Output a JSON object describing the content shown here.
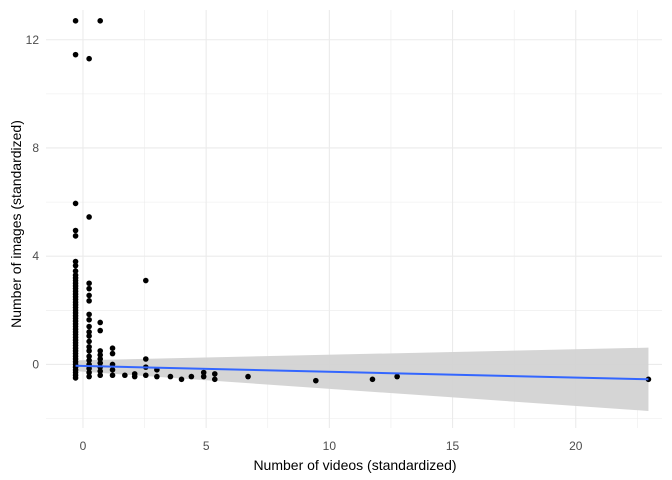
{
  "chart_data": {
    "type": "scatter",
    "title": "",
    "xlabel": "Number of videos (standardized)",
    "ylabel": "Number of images (standardized)",
    "xlim": [
      -1.5,
      23.5
    ],
    "ylim": [
      -2.35,
      13.1
    ],
    "x_ticks": [
      0,
      5,
      10,
      15,
      20
    ],
    "x_tick_labels": [
      "0",
      "5",
      "10",
      "15",
      "20"
    ],
    "y_ticks": [
      0,
      4,
      8,
      12
    ],
    "y_tick_labels": [
      "0",
      "4",
      "8",
      "12"
    ],
    "grid": true,
    "legend": "none",
    "points": [
      {
        "x": -0.3,
        "y": 12.7
      },
      {
        "x": 0.7,
        "y": 12.7
      },
      {
        "x": -0.3,
        "y": 11.45
      },
      {
        "x": 0.25,
        "y": 11.3
      },
      {
        "x": -0.3,
        "y": 5.95
      },
      {
        "x": 0.25,
        "y": 5.45
      },
      {
        "x": -0.3,
        "y": 4.95
      },
      {
        "x": -0.3,
        "y": 4.75
      },
      {
        "x": -0.3,
        "y": 3.8
      },
      {
        "x": -0.3,
        "y": 3.65
      },
      {
        "x": -0.3,
        "y": 3.45
      },
      {
        "x": -0.3,
        "y": 3.3
      },
      {
        "x": -0.3,
        "y": 3.2
      },
      {
        "x": -0.3,
        "y": 3.1
      },
      {
        "x": -0.3,
        "y": 3.0
      },
      {
        "x": -0.3,
        "y": 2.9
      },
      {
        "x": -0.3,
        "y": 2.8
      },
      {
        "x": -0.3,
        "y": 2.7
      },
      {
        "x": -0.3,
        "y": 2.6
      },
      {
        "x": -0.3,
        "y": 2.5
      },
      {
        "x": -0.3,
        "y": 2.4
      },
      {
        "x": -0.3,
        "y": 2.3
      },
      {
        "x": -0.3,
        "y": 2.2
      },
      {
        "x": -0.3,
        "y": 2.1
      },
      {
        "x": -0.3,
        "y": 2.0
      },
      {
        "x": -0.3,
        "y": 1.9
      },
      {
        "x": -0.3,
        "y": 1.8
      },
      {
        "x": -0.3,
        "y": 1.7
      },
      {
        "x": -0.3,
        "y": 1.6
      },
      {
        "x": -0.3,
        "y": 1.5
      },
      {
        "x": -0.3,
        "y": 1.4
      },
      {
        "x": -0.3,
        "y": 1.3
      },
      {
        "x": -0.3,
        "y": 1.2
      },
      {
        "x": -0.3,
        "y": 1.1
      },
      {
        "x": -0.3,
        "y": 1.0
      },
      {
        "x": -0.3,
        "y": 0.9
      },
      {
        "x": -0.3,
        "y": 0.8
      },
      {
        "x": -0.3,
        "y": 0.7
      },
      {
        "x": -0.3,
        "y": 0.6
      },
      {
        "x": -0.3,
        "y": 0.5
      },
      {
        "x": -0.3,
        "y": 0.4
      },
      {
        "x": -0.3,
        "y": 0.3
      },
      {
        "x": -0.3,
        "y": 0.2
      },
      {
        "x": -0.3,
        "y": 0.1
      },
      {
        "x": -0.3,
        "y": 0.0
      },
      {
        "x": -0.3,
        "y": -0.1
      },
      {
        "x": -0.3,
        "y": -0.2
      },
      {
        "x": -0.3,
        "y": -0.3
      },
      {
        "x": -0.3,
        "y": -0.4
      },
      {
        "x": -0.3,
        "y": -0.5
      },
      {
        "x": 0.25,
        "y": 3.0
      },
      {
        "x": 0.25,
        "y": 2.8
      },
      {
        "x": 0.25,
        "y": 2.55
      },
      {
        "x": 0.25,
        "y": 2.35
      },
      {
        "x": 0.25,
        "y": 1.85
      },
      {
        "x": 0.25,
        "y": 1.65
      },
      {
        "x": 0.25,
        "y": 1.4
      },
      {
        "x": 0.25,
        "y": 1.2
      },
      {
        "x": 0.25,
        "y": 1.05
      },
      {
        "x": 0.25,
        "y": 0.85
      },
      {
        "x": 0.25,
        "y": 0.65
      },
      {
        "x": 0.25,
        "y": 0.5
      },
      {
        "x": 0.25,
        "y": 0.3
      },
      {
        "x": 0.25,
        "y": 0.15
      },
      {
        "x": 0.25,
        "y": 0.0
      },
      {
        "x": 0.25,
        "y": -0.15
      },
      {
        "x": 0.25,
        "y": -0.3
      },
      {
        "x": 0.25,
        "y": -0.45
      },
      {
        "x": 0.7,
        "y": 1.55
      },
      {
        "x": 0.7,
        "y": 1.25
      },
      {
        "x": 0.7,
        "y": 0.5
      },
      {
        "x": 0.7,
        "y": 0.35
      },
      {
        "x": 0.7,
        "y": 0.2
      },
      {
        "x": 0.7,
        "y": 0.05
      },
      {
        "x": 0.7,
        "y": -0.1
      },
      {
        "x": 0.7,
        "y": -0.25
      },
      {
        "x": 0.7,
        "y": -0.4
      },
      {
        "x": 1.2,
        "y": 0.6
      },
      {
        "x": 1.2,
        "y": 0.4
      },
      {
        "x": 1.2,
        "y": 0.0
      },
      {
        "x": 1.2,
        "y": -0.2
      },
      {
        "x": 1.2,
        "y": -0.4
      },
      {
        "x": 1.7,
        "y": -0.4
      },
      {
        "x": 2.1,
        "y": -0.35
      },
      {
        "x": 2.1,
        "y": -0.45
      },
      {
        "x": 2.55,
        "y": 3.1
      },
      {
        "x": 2.55,
        "y": 0.2
      },
      {
        "x": 2.55,
        "y": -0.1
      },
      {
        "x": 2.55,
        "y": -0.4
      },
      {
        "x": 3.0,
        "y": -0.2
      },
      {
        "x": 3.0,
        "y": -0.45
      },
      {
        "x": 3.55,
        "y": -0.45
      },
      {
        "x": 4.0,
        "y": -0.55
      },
      {
        "x": 4.4,
        "y": -0.45
      },
      {
        "x": 4.9,
        "y": -0.3
      },
      {
        "x": 4.9,
        "y": -0.45
      },
      {
        "x": 5.35,
        "y": -0.35
      },
      {
        "x": 5.35,
        "y": -0.55
      },
      {
        "x": 6.7,
        "y": -0.45
      },
      {
        "x": 9.45,
        "y": -0.6
      },
      {
        "x": 11.75,
        "y": -0.55
      },
      {
        "x": 12.75,
        "y": -0.45
      },
      {
        "x": 22.95,
        "y": -0.55
      }
    ],
    "trend": {
      "x": [
        -0.3,
        22.95
      ],
      "y": [
        -0.05,
        -0.55
      ],
      "ci_lower": [
        -0.25,
        -1.72
      ],
      "ci_upper": [
        0.15,
        0.62
      ]
    },
    "colors": {
      "points": "#000000",
      "trend_line": "#3366ff",
      "confidence_band": "#d3d3d3",
      "grid": "#ebebeb"
    }
  }
}
